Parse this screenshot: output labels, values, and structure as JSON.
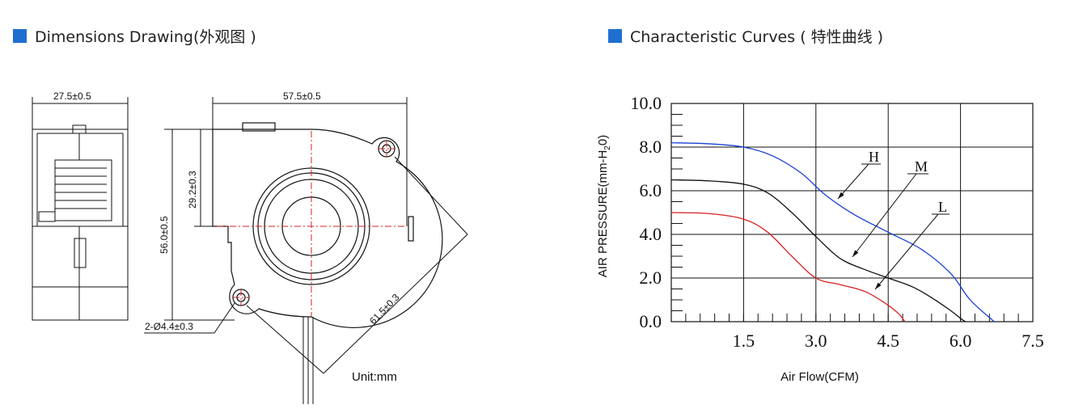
{
  "left_panel": {
    "title": "Dimensions Drawing(外观图 )",
    "dims": {
      "side_width": "27.5±0.5",
      "top_width": "57.5±0.5",
      "center_height": "29.2±0.3",
      "total_height": "56.0±0.5",
      "diagonal": "61.5±0.3",
      "holes": "2-Ø4.4±0.3",
      "unit": "Unit:mm"
    }
  },
  "right_panel": {
    "title": "Characteristic Curves ( 特性曲线 )"
  },
  "chart_data": {
    "type": "line",
    "xlabel": "Air Flow(CFM)",
    "ylabel": "AIR PRESSURE(mm-H",
    "ylabel_sub": "2",
    "ylabel_tail": "0)",
    "xlim": [
      0,
      7.5
    ],
    "ylim": [
      0,
      10
    ],
    "x_ticks": [
      "1.5",
      "3.0",
      "4.5",
      "6.0",
      "7.5"
    ],
    "y_ticks": [
      "0.0",
      "2.0",
      "4.0",
      "6.0",
      "8.0",
      "10.0"
    ],
    "grid": true,
    "colors": {
      "H": "#1a3fd6",
      "M": "#111111",
      "L": "#d62020"
    },
    "series": [
      {
        "name": "H",
        "x": [
          0,
          0.8,
          1.5,
          2.1,
          2.7,
          3.2,
          3.8,
          4.5,
          5.2,
          5.8,
          6.2,
          6.7
        ],
        "y": [
          8.2,
          8.15,
          8.0,
          7.6,
          6.8,
          5.8,
          4.9,
          4.1,
          3.3,
          2.2,
          1.0,
          0.0
        ]
      },
      {
        "name": "M",
        "x": [
          0,
          0.8,
          1.5,
          2.0,
          2.5,
          3.0,
          3.5,
          4.0,
          4.5,
          5.0,
          5.4,
          5.8,
          6.0,
          6.1
        ],
        "y": [
          6.5,
          6.45,
          6.3,
          5.9,
          5.0,
          3.9,
          2.9,
          2.4,
          2.0,
          1.6,
          1.1,
          0.5,
          0.15,
          0.0
        ]
      },
      {
        "name": "L",
        "x": [
          0,
          0.8,
          1.5,
          2.0,
          2.5,
          3.0,
          3.5,
          4.0,
          4.4,
          4.7,
          4.85
        ],
        "y": [
          5.0,
          4.95,
          4.7,
          4.1,
          3.0,
          2.0,
          1.7,
          1.4,
          0.9,
          0.4,
          0.0
        ]
      }
    ]
  }
}
